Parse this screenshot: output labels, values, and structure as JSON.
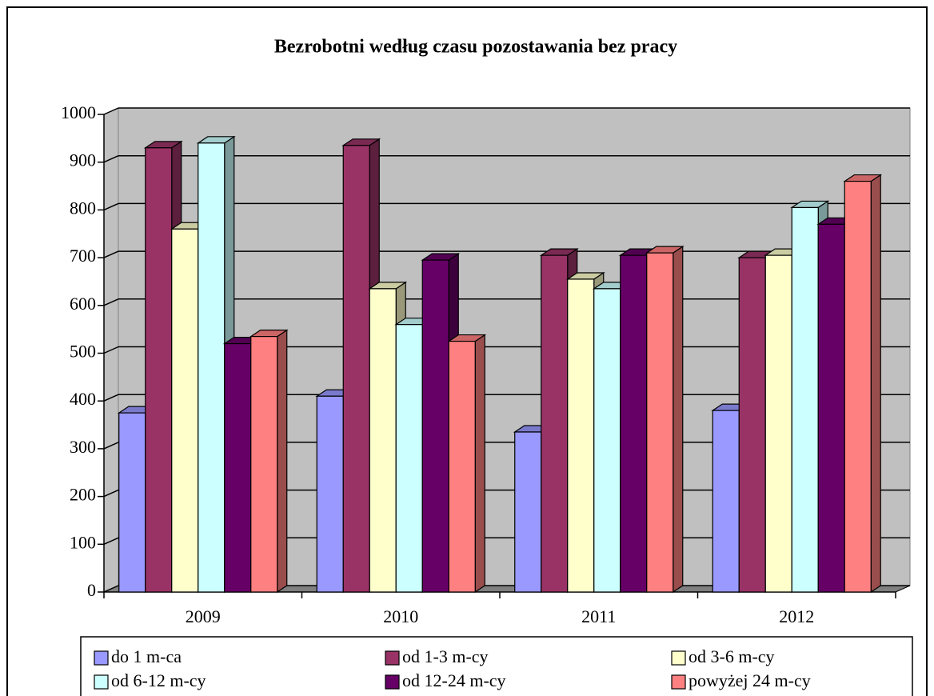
{
  "chart_data": {
    "type": "bar3d",
    "title": "Bezrobotni według czasu pozostawania bez pracy",
    "categories": [
      "2009",
      "2010",
      "2011",
      "2012"
    ],
    "series": [
      {
        "name": "do 1 m-ca",
        "color": "#9999ff",
        "values": [
          375,
          410,
          335,
          380
        ]
      },
      {
        "name": "od 1-3 m-cy",
        "color": "#993366",
        "values": [
          930,
          935,
          705,
          700
        ]
      },
      {
        "name": "od 3-6 m-cy",
        "color": "#ffffcc",
        "values": [
          760,
          635,
          655,
          705
        ]
      },
      {
        "name": "od 6-12 m-cy",
        "color": "#ccffff",
        "values": [
          940,
          560,
          635,
          805
        ]
      },
      {
        "name": "od 12-24 m-cy",
        "color": "#660066",
        "values": [
          520,
          695,
          705,
          770
        ]
      },
      {
        "name": "powyżej 24 m-cy",
        "color": "#ff8080",
        "values": [
          535,
          525,
          710,
          860
        ]
      }
    ],
    "ylim": [
      0,
      1000
    ],
    "yticks": [
      0,
      100,
      200,
      300,
      400,
      500,
      600,
      700,
      800,
      900,
      1000
    ],
    "grid": true
  }
}
